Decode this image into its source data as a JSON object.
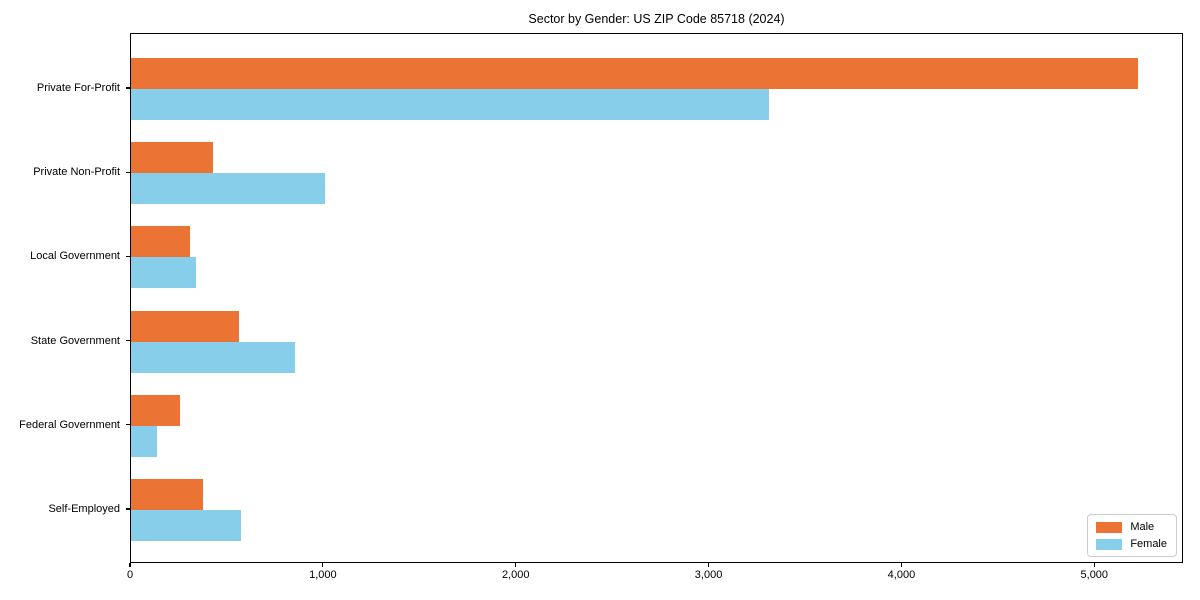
{
  "chart_data": {
    "type": "bar",
    "orientation": "horizontal",
    "title": "Sector by Gender: US ZIP Code 85718 (2024)",
    "categories": [
      "Private For-Profit",
      "Private Non-Profit",
      "Local Government",
      "State Government",
      "Federal Government",
      "Self-Employed"
    ],
    "series": [
      {
        "name": "Male",
        "color": "#EB7434",
        "values": [
          5220,
          425,
          305,
          560,
          255,
          375
        ]
      },
      {
        "name": "Female",
        "color": "#87CEEB",
        "values": [
          3310,
          1005,
          335,
          850,
          135,
          570
        ]
      }
    ],
    "xlabel": "",
    "ylabel": "",
    "xlim": [
      0,
      5460
    ],
    "x_ticks": [
      0,
      1000,
      2000,
      3000,
      4000,
      5000
    ],
    "x_tick_labels": [
      "0",
      "1,000",
      "2,000",
      "3,000",
      "4,000",
      "5,000"
    ],
    "grid": false,
    "legend_position": "lower right",
    "plot_background": "#ffffff",
    "spine_color": "#000000"
  }
}
